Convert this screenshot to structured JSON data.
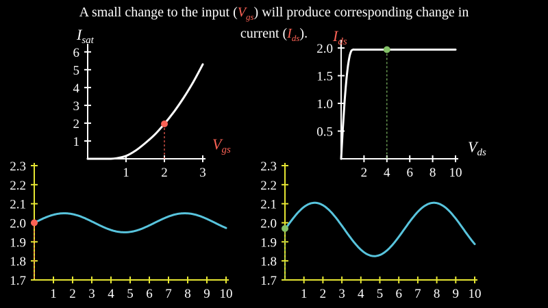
{
  "caption": {
    "part1": "A small change to the input (",
    "vgs_main": "V",
    "vgs_sub": "gs",
    "part2": ") will produce corresponding change in",
    "part3": "current (",
    "ids_main": "I",
    "ids_sub": "ds",
    "part4": ")."
  },
  "colors": {
    "background": "#000000",
    "curve": "#ffffff",
    "wave": "#58c4dd",
    "axis_yellow": "#e6e632",
    "red_accent": "#fc6255",
    "green_accent": "#83c167"
  },
  "chart_data": [
    {
      "type": "line",
      "id": "isat-vs-vgs",
      "ylabel_main": "I",
      "ylabel_sub": "sat",
      "xlabel_main": "V",
      "xlabel_sub": "gs",
      "xlabel_color": "#fc6255",
      "xlim": [
        0,
        3
      ],
      "ylim": [
        0,
        6.3
      ],
      "xticks": [
        1,
        2,
        3
      ],
      "yticks": [
        1,
        2,
        3,
        4,
        5,
        6
      ],
      "x": [
        0,
        0.3,
        0.6,
        0.75,
        1.0,
        1.25,
        1.5,
        1.75,
        2.0,
        2.25,
        2.5,
        2.75,
        3.0
      ],
      "y": [
        0,
        0,
        0,
        0.03,
        0.16,
        0.46,
        0.88,
        1.36,
        1.96,
        2.64,
        3.42,
        4.3,
        5.3
      ],
      "marker": {
        "x": 2,
        "y": 1.96,
        "color": "#fc6255"
      }
    },
    {
      "type": "line",
      "id": "ids-vs-vds",
      "ylabel_main": "I",
      "ylabel_sub": "ds",
      "ylabel_color": "#fc6255",
      "xlabel_main": "V",
      "xlabel_sub": "ds",
      "xlim": [
        0,
        10
      ],
      "ylim": [
        0,
        2.1
      ],
      "xticks": [
        2,
        4,
        6,
        8,
        10
      ],
      "yticks": [
        0.5,
        1.0,
        1.5,
        2.0
      ],
      "ytick_labels": [
        "0.5",
        "1.0",
        "1.5",
        "2.0"
      ],
      "x": [
        0,
        0.15,
        0.3,
        0.45,
        0.6,
        0.75,
        0.9,
        1.05,
        1.2,
        1.5,
        2.0,
        4.0,
        6.0,
        8.0,
        10.0
      ],
      "y": [
        0,
        0.55,
        1.02,
        1.4,
        1.68,
        1.86,
        1.95,
        1.97,
        1.97,
        1.97,
        1.97,
        1.97,
        1.97,
        1.97,
        1.97
      ],
      "marker": {
        "x": 4,
        "y": 1.97,
        "color": "#83c167"
      }
    },
    {
      "type": "line",
      "id": "input-wave",
      "xlim": [
        0,
        10
      ],
      "ylim": [
        1.7,
        2.3
      ],
      "xticks": [
        1,
        2,
        3,
        4,
        5,
        6,
        7,
        8,
        9,
        10
      ],
      "yticks": [
        1.7,
        1.8,
        1.9,
        2.0,
        2.1,
        2.2,
        2.3
      ],
      "ytick_labels": [
        "1.7",
        "1.8",
        "1.9",
        "2.0",
        "2.1",
        "2.2",
        "2.3"
      ],
      "series": [
        {
          "offset": 2.0,
          "amplitude": 0.05,
          "period": 6.28,
          "x_end": 10
        }
      ],
      "marker": {
        "x": 0,
        "y": 2.0,
        "color": "#fc6255"
      }
    },
    {
      "type": "line",
      "id": "output-wave",
      "xlim": [
        0,
        10
      ],
      "ylim": [
        1.7,
        2.3
      ],
      "xticks": [
        1,
        2,
        3,
        4,
        5,
        6,
        7,
        8,
        9,
        10
      ],
      "yticks": [
        1.7,
        1.8,
        1.9,
        2.0,
        2.1,
        2.2,
        2.3
      ],
      "ytick_labels": [
        "1.7",
        "1.8",
        "1.9",
        "2.0",
        "2.1",
        "2.2",
        "2.3"
      ],
      "series": [
        {
          "offset": 1.965,
          "amplitude": 0.14,
          "period": 6.28,
          "x_end": 10
        }
      ],
      "marker": {
        "x": 0,
        "y": 1.97,
        "color": "#83c167"
      }
    }
  ]
}
